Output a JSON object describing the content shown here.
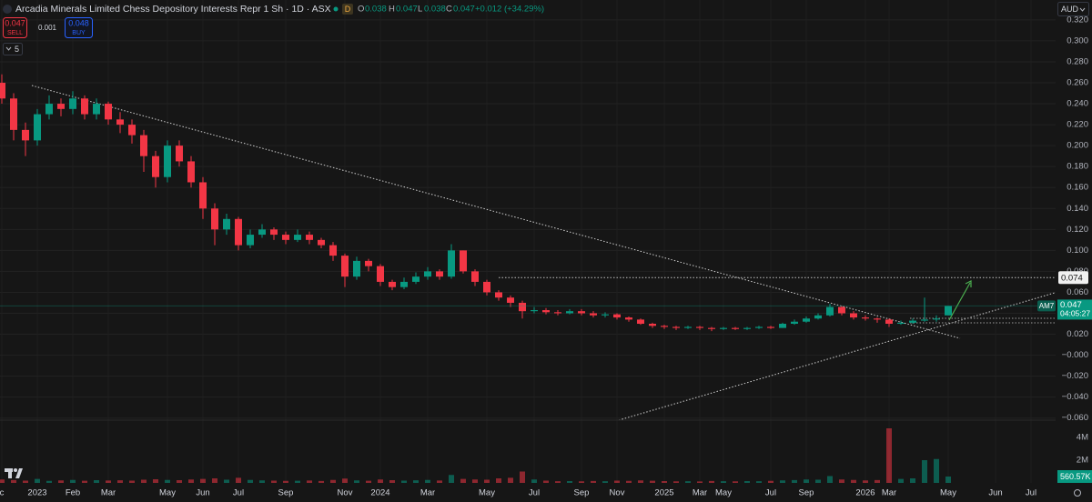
{
  "chart_data": {
    "type": "candlestick",
    "title": "Arcadia Minerals Limited Chess Depository Interests Repr 1 Sh · 1D · ASX",
    "market_status": "D",
    "ohlc_labels": [
      "O",
      "H",
      "L",
      "C"
    ],
    "change_label": "+0.012 (+34.29%)",
    "trade": {
      "sell": 0.047,
      "sell_label": "SELL",
      "spread": 0.001,
      "buy": 0.048,
      "buy_label": "BUY"
    },
    "indicator_count": "5",
    "currency": "AUD",
    "symbol": "AM7",
    "countdown": "04:05:27",
    "up_color": "#089981",
    "down_color": "#f23645",
    "grid": true,
    "categories": [
      "c",
      null,
      null,
      "2023",
      null,
      null,
      "Feb",
      null,
      null,
      "Mar",
      null,
      null,
      null,
      null,
      "May",
      null,
      null,
      "Jun",
      null,
      null,
      "Jul",
      null,
      null,
      null,
      "Sep",
      null,
      null,
      null,
      null,
      "Nov",
      null,
      null,
      "2024",
      null,
      null,
      null,
      "Mar",
      null,
      null,
      null,
      null,
      "May",
      null,
      null,
      null,
      "Jul",
      null,
      null,
      null,
      "Sep",
      null,
      null,
      "Nov",
      null,
      null,
      null,
      "2025",
      null,
      null,
      "Mar",
      null,
      "May",
      null,
      null,
      null,
      "Jul",
      null,
      null,
      "Sep",
      null,
      null,
      null,
      null,
      "2026",
      null,
      "Mar",
      null,
      null,
      null,
      null,
      "May",
      null,
      null,
      null,
      "Jun",
      null,
      null,
      "Jul",
      null
    ],
    "open": [
      0.26,
      0.245,
      0.215,
      0.205,
      0.23,
      0.24,
      0.235,
      0.245,
      0.23,
      0.24,
      0.225,
      0.22,
      0.21,
      0.19,
      0.17,
      0.2,
      0.185,
      0.165,
      0.14,
      0.12,
      0.13,
      0.105,
      0.115,
      0.12,
      0.115,
      0.11,
      0.115,
      0.11,
      0.105,
      0.095,
      0.075,
      0.09,
      0.085,
      0.07,
      0.065,
      0.07,
      0.075,
      0.08,
      0.075,
      0.1,
      0.08,
      0.07,
      0.06,
      0.055,
      0.05,
      0.042,
      0.043,
      0.041,
      0.04,
      0.042,
      0.04,
      0.038,
      0.039,
      0.036,
      0.034,
      0.03,
      0.028,
      0.027,
      0.026,
      0.027,
      0.026,
      0.025,
      0.026,
      0.025,
      0.026,
      0.027,
      0.026,
      0.03,
      0.032,
      0.035,
      0.038,
      0.046,
      0.04,
      0.036,
      0.035,
      0.034,
      0.03,
      0.031,
      0.033,
      0.034,
      0.038,
      null,
      null,
      null,
      null,
      null,
      null,
      null,
      null
    ],
    "high": [
      0.268,
      0.25,
      0.222,
      0.235,
      0.248,
      0.245,
      0.252,
      0.248,
      0.245,
      0.242,
      0.232,
      0.225,
      0.215,
      0.195,
      0.205,
      0.205,
      0.19,
      0.17,
      0.145,
      0.135,
      0.132,
      0.12,
      0.125,
      0.122,
      0.118,
      0.12,
      0.118,
      0.112,
      0.108,
      0.097,
      0.094,
      0.092,
      0.087,
      0.072,
      0.074,
      0.079,
      0.084,
      0.082,
      0.106,
      0.1,
      0.082,
      0.072,
      0.062,
      0.057,
      0.052,
      0.046,
      0.045,
      0.043,
      0.044,
      0.044,
      0.042,
      0.041,
      0.04,
      0.037,
      0.035,
      0.031,
      0.029,
      0.028,
      0.028,
      0.028,
      0.027,
      0.027,
      0.027,
      0.027,
      0.028,
      0.028,
      0.031,
      0.034,
      0.037,
      0.04,
      0.049,
      0.047,
      0.042,
      0.038,
      0.036,
      0.035,
      0.033,
      0.035,
      0.055,
      0.038,
      0.047,
      null,
      null,
      null,
      null,
      null,
      null,
      null,
      null
    ],
    "low": [
      0.24,
      0.205,
      0.19,
      0.2,
      0.225,
      0.228,
      0.23,
      0.225,
      0.225,
      0.22,
      0.212,
      0.202,
      0.175,
      0.16,
      0.165,
      0.18,
      0.16,
      0.13,
      0.105,
      0.115,
      0.1,
      0.102,
      0.112,
      0.11,
      0.106,
      0.108,
      0.106,
      0.102,
      0.09,
      0.065,
      0.072,
      0.08,
      0.066,
      0.062,
      0.063,
      0.068,
      0.072,
      0.072,
      0.073,
      0.078,
      0.066,
      0.057,
      0.052,
      0.046,
      0.035,
      0.04,
      0.039,
      0.038,
      0.039,
      0.038,
      0.036,
      0.036,
      0.034,
      0.032,
      0.029,
      0.026,
      0.025,
      0.024,
      0.025,
      0.024,
      0.023,
      0.024,
      0.024,
      0.024,
      0.025,
      0.025,
      0.026,
      0.029,
      0.031,
      0.034,
      0.037,
      0.038,
      0.034,
      0.033,
      0.031,
      0.027,
      0.029,
      0.03,
      0.032,
      0.032,
      0.038,
      null,
      null,
      null,
      null,
      null,
      null,
      null,
      null
    ],
    "close": [
      0.245,
      0.215,
      0.205,
      0.23,
      0.24,
      0.235,
      0.245,
      0.23,
      0.24,
      0.225,
      0.22,
      0.21,
      0.19,
      0.17,
      0.2,
      0.185,
      0.165,
      0.14,
      0.12,
      0.13,
      0.105,
      0.115,
      0.12,
      0.115,
      0.11,
      0.115,
      0.11,
      0.105,
      0.095,
      0.075,
      0.09,
      0.085,
      0.07,
      0.065,
      0.07,
      0.075,
      0.08,
      0.075,
      0.1,
      0.08,
      0.07,
      0.06,
      0.055,
      0.05,
      0.042,
      0.043,
      0.041,
      0.04,
      0.042,
      0.04,
      0.038,
      0.039,
      0.036,
      0.034,
      0.03,
      0.028,
      0.027,
      0.026,
      0.027,
      0.026,
      0.025,
      0.026,
      0.025,
      0.026,
      0.027,
      0.026,
      0.03,
      0.032,
      0.035,
      0.038,
      0.046,
      0.04,
      0.036,
      0.035,
      0.034,
      0.03,
      0.031,
      0.033,
      0.034,
      0.035,
      0.047,
      null,
      null,
      null,
      null,
      null,
      null,
      null,
      null
    ],
    "volume": [
      300000,
      250000,
      200000,
      350000,
      180000,
      220000,
      260000,
      190000,
      240000,
      210000,
      230000,
      200000,
      280000,
      320000,
      260000,
      240000,
      300000,
      350000,
      400000,
      280000,
      450000,
      260000,
      220000,
      200000,
      180000,
      190000,
      210000,
      170000,
      260000,
      380000,
      220000,
      190000,
      300000,
      240000,
      200000,
      230000,
      260000,
      210000,
      700000,
      350000,
      300000,
      280000,
      400000,
      450000,
      1000000,
      300000,
      200000,
      150000,
      160000,
      140000,
      170000,
      150000,
      200000,
      180000,
      220000,
      190000,
      160000,
      140000,
      150000,
      130000,
      170000,
      150000,
      140000,
      160000,
      150000,
      180000,
      220000,
      250000,
      300000,
      280000,
      600000,
      300000,
      260000,
      220000,
      250000,
      4800000,
      350000,
      400000,
      2000000,
      2100000,
      560570,
      null,
      null,
      null,
      null,
      null,
      null,
      null,
      null
    ],
    "last_volume_label": "560.57K",
    "ylim": [
      -0.062,
      0.339
    ],
    "yticks": [
      {
        "value": 0.32,
        "label": "0.320"
      },
      {
        "value": 0.3,
        "label": "0.300"
      },
      {
        "value": 0.28,
        "label": "0.280"
      },
      {
        "value": 0.26,
        "label": "0.260"
      },
      {
        "value": 0.24,
        "label": "0.240"
      },
      {
        "value": 0.22,
        "label": "0.220"
      },
      {
        "value": 0.2,
        "label": "0.200"
      },
      {
        "value": 0.18,
        "label": "0.180"
      },
      {
        "value": 0.16,
        "label": "0.160"
      },
      {
        "value": 0.14,
        "label": "0.140"
      },
      {
        "value": 0.12,
        "label": "0.120"
      },
      {
        "value": 0.1,
        "label": "0.100"
      },
      {
        "value": 0.08,
        "label": "0.080"
      },
      {
        "value": 0.06,
        "label": "0.060"
      },
      {
        "value": 0.04,
        "label": "0.040"
      },
      {
        "value": 0.02,
        "label": "0.020"
      },
      {
        "value": 0,
        "label": "−0.000"
      },
      {
        "value": -0.02,
        "label": "−0.020"
      },
      {
        "value": -0.04,
        "label": "−0.040"
      },
      {
        "value": -0.06,
        "label": "−0.060"
      }
    ],
    "volume_lim": [
      0,
      5280000
    ],
    "volume_ticks": [
      {
        "value": 4000000,
        "label": "4M"
      },
      {
        "value": 2000000,
        "label": "2M"
      }
    ],
    "price_lines": [
      0.074
    ]
  }
}
